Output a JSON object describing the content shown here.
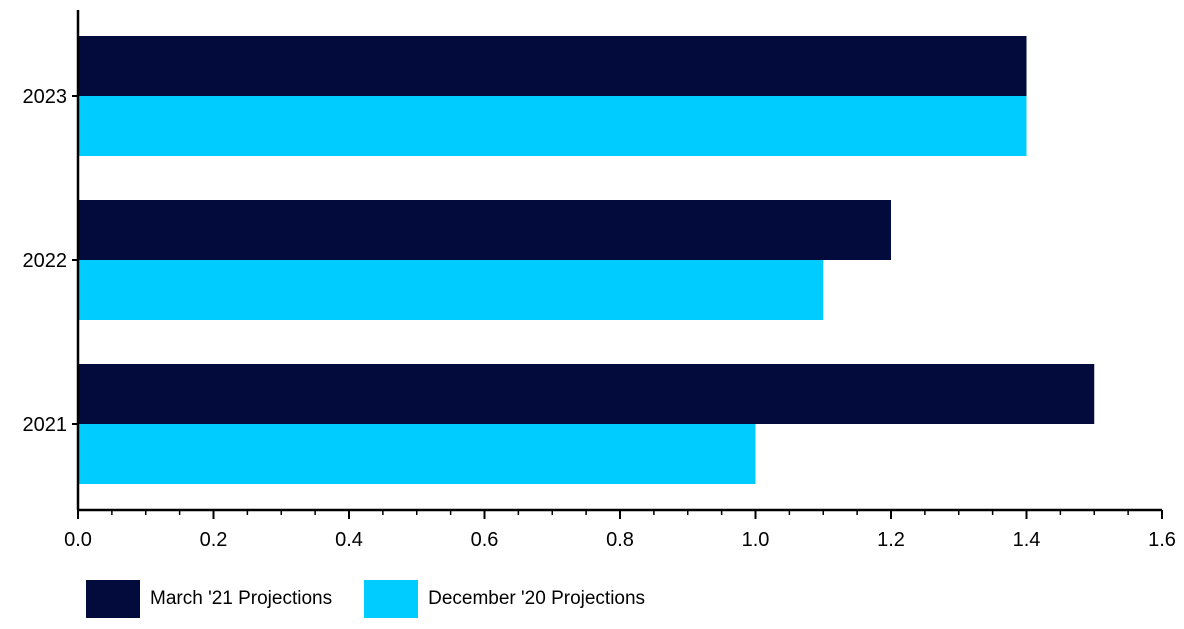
{
  "chart_data": {
    "type": "bar",
    "orientation": "horizontal",
    "categories": [
      "2021",
      "2022",
      "2023"
    ],
    "series": [
      {
        "name": "March '21 Projections",
        "values": [
          1.5,
          1.2,
          1.4
        ],
        "color": "#020b3c"
      },
      {
        "name": "December '20 Projections",
        "values": [
          1.0,
          1.1,
          1.4
        ],
        "color": "#00ccff"
      }
    ],
    "x_ticks": [
      "0.0",
      "0.2",
      "0.4",
      "0.6",
      "0.8",
      "1.0",
      "1.2",
      "1.4",
      "1.6"
    ],
    "xlim": [
      0,
      1.6
    ],
    "title": "",
    "xlabel": "",
    "ylabel": "",
    "grid": false,
    "legend_position": "bottom-left"
  }
}
